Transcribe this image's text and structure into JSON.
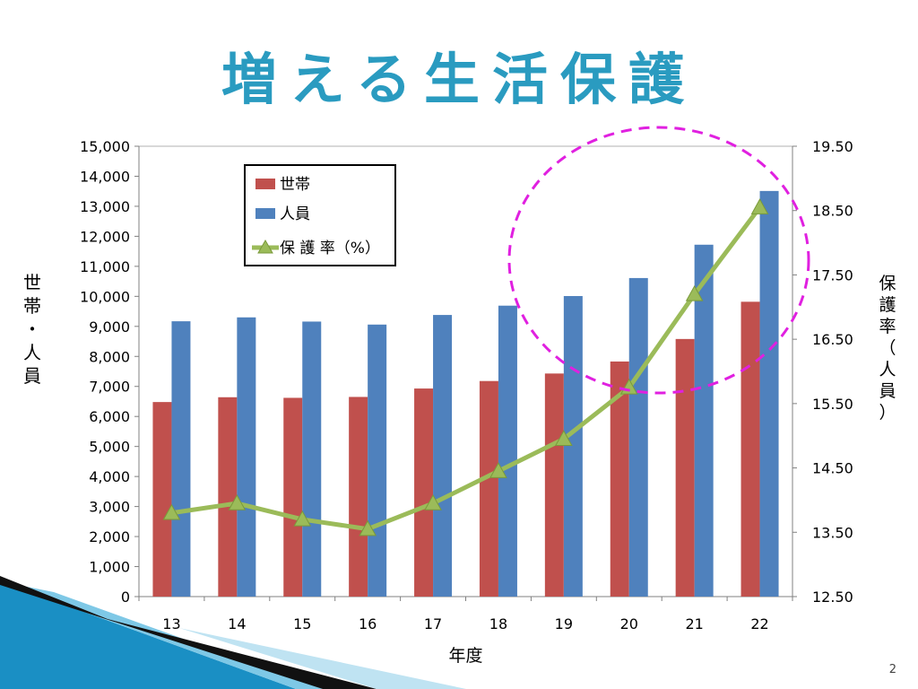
{
  "slide": {
    "title": "増える生活保護",
    "page_number": "2"
  },
  "colors": {
    "title": "#2a9bc0",
    "households": "#c0504d",
    "persons": "#4f81bd",
    "rate": "#9bbb59",
    "highlight_circle": "#e020e0"
  },
  "chart_data": {
    "type": "bar",
    "categories": [
      "13",
      "14",
      "15",
      "16",
      "17",
      "18",
      "19",
      "20",
      "21",
      "22"
    ],
    "xlabel": "年度",
    "ylabel": "世帯・人員",
    "y2label": "保護率（人員）",
    "ylim": [
      0,
      15000
    ],
    "yticks": [
      "0",
      "1,000",
      "2,000",
      "3,000",
      "4,000",
      "5,000",
      "6,000",
      "7,000",
      "8,000",
      "9,000",
      "10,000",
      "11,000",
      "12,000",
      "13,000",
      "14,000",
      "15,000"
    ],
    "y2lim": [
      12.5,
      19.5
    ],
    "y2ticks": [
      "12.50",
      "13.50",
      "14.50",
      "15.50",
      "16.50",
      "17.50",
      "18.50",
      "19.50"
    ],
    "series": [
      {
        "name": "世帯",
        "type": "bar",
        "axis": "left",
        "values": [
          6480,
          6640,
          6620,
          6650,
          6930,
          7180,
          7430,
          7830,
          8580,
          9820
        ]
      },
      {
        "name": "人員",
        "type": "bar",
        "axis": "left",
        "values": [
          9170,
          9300,
          9160,
          9060,
          9380,
          9690,
          10010,
          10610,
          11720,
          13510
        ]
      },
      {
        "name": "保 護 率（%）",
        "type": "line",
        "axis": "right",
        "values": [
          13.8,
          13.95,
          13.7,
          13.55,
          13.95,
          14.45,
          14.95,
          15.75,
          17.2,
          18.55
        ]
      }
    ],
    "grid": false,
    "legend": "top-left"
  }
}
